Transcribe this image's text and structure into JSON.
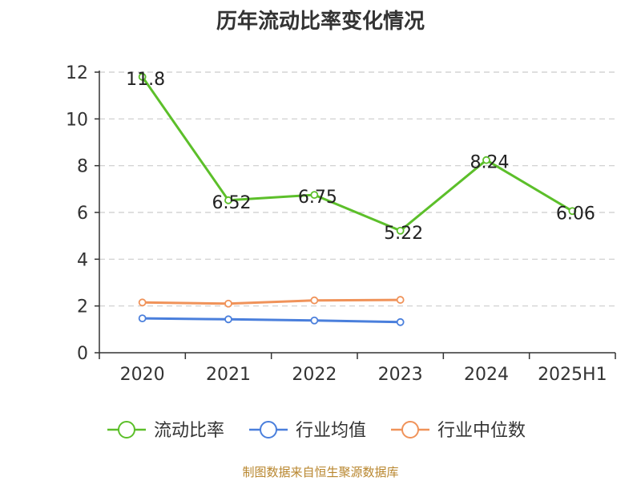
{
  "title": "历年流动比率变化情况",
  "footer": "制图数据来自恒生聚源数据库",
  "colors": {
    "primary": "#5cbf2a",
    "avg": "#4a7fdc",
    "median": "#f0935a",
    "grid": "#cccccc",
    "axis": "#333333"
  },
  "chart_data": {
    "type": "line",
    "title": "历年流动比率变化情况",
    "categories": [
      "2020",
      "2021",
      "2022",
      "2023",
      "2024",
      "2025H1"
    ],
    "ylim": [
      0,
      12
    ],
    "yticks": [
      0,
      2,
      4,
      6,
      8,
      10,
      12
    ],
    "grid": "horizontal dashed",
    "legend_position": "bottom",
    "series": [
      {
        "name": "流动比率",
        "values": [
          11.8,
          6.52,
          6.75,
          5.22,
          8.24,
          6.06
        ],
        "labels": [
          "11.8",
          "6.52",
          "6.75",
          "5.22",
          "8.24",
          "6.06"
        ],
        "color": "#5cbf2a"
      },
      {
        "name": "行业均值",
        "values": [
          1.47,
          1.43,
          1.38,
          1.31,
          null,
          null
        ],
        "color": "#4a7fdc"
      },
      {
        "name": "行业中位数",
        "values": [
          2.15,
          2.1,
          2.24,
          2.26,
          null,
          null
        ],
        "color": "#f0935a"
      }
    ]
  }
}
